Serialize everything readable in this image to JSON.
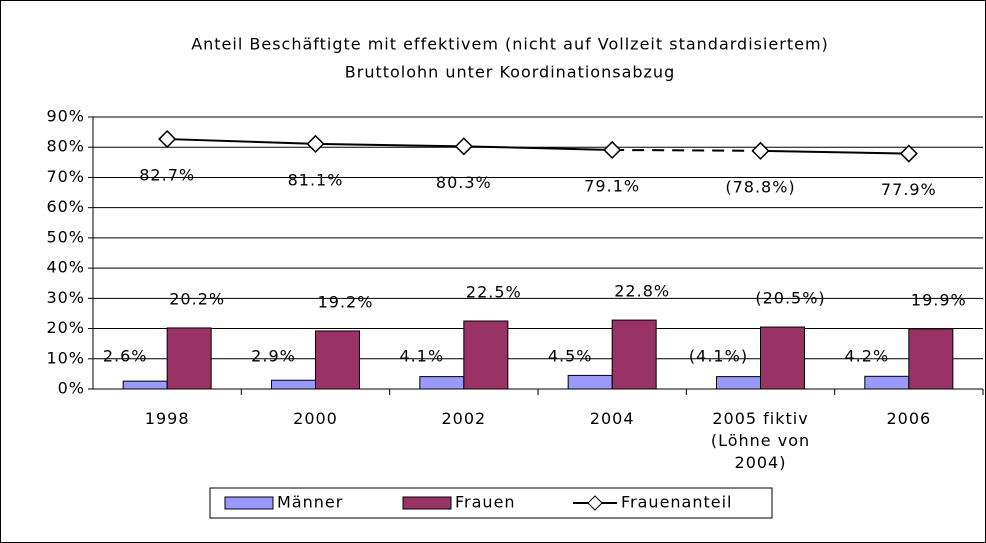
{
  "chart_data": {
    "type": "bar",
    "title": [
      "Anteil Beschäftigte mit effektivem (nicht auf Vollzeit standardisiertem)",
      "Bruttolohn unter Koordinationsabzug"
    ],
    "categories": [
      "1998",
      "2000",
      "2002",
      "2004",
      "2005 fiktiv (Löhne von 2004)",
      "2006"
    ],
    "series": [
      {
        "name": "Männer",
        "color": "#9999ff",
        "values": [
          2.6,
          2.9,
          4.1,
          4.5,
          4.1,
          4.2
        ],
        "value_labels": [
          "2.6%",
          "2.9%",
          "4.1%",
          "4.5%",
          "(4.1%)",
          "4.2%"
        ]
      },
      {
        "name": "Frauen",
        "color": "#993366",
        "values": [
          20.2,
          19.2,
          22.5,
          22.8,
          20.5,
          19.9
        ],
        "value_labels": [
          "20.2%",
          "19.2%",
          "22.5%",
          "22.8%",
          "(20.5%)",
          "19.9%"
        ]
      },
      {
        "name": "Frauenanteil",
        "type": "line",
        "color": "#000000",
        "values": [
          82.7,
          81.1,
          80.3,
          79.1,
          78.8,
          77.9
        ],
        "value_labels": [
          "82.7%",
          "81.1%",
          "80.3%",
          "79.1%",
          "(78.8%)",
          "77.9%"
        ],
        "dashed_segment_starts": [
          3
        ]
      }
    ],
    "ylim": [
      0,
      90
    ],
    "yticks": [
      {
        "value": 0,
        "label": "0%"
      },
      {
        "value": 10,
        "label": "10%"
      },
      {
        "value": 20,
        "label": "20%"
      },
      {
        "value": 30,
        "label": "30%"
      },
      {
        "value": 40,
        "label": "40%"
      },
      {
        "value": 50,
        "label": "50%"
      },
      {
        "value": 60,
        "label": "60%"
      },
      {
        "value": 70,
        "label": "70%"
      },
      {
        "value": 80,
        "label": "80%"
      },
      {
        "value": 90,
        "label": "90%"
      }
    ],
    "grid": true,
    "legend": "bottom"
  }
}
